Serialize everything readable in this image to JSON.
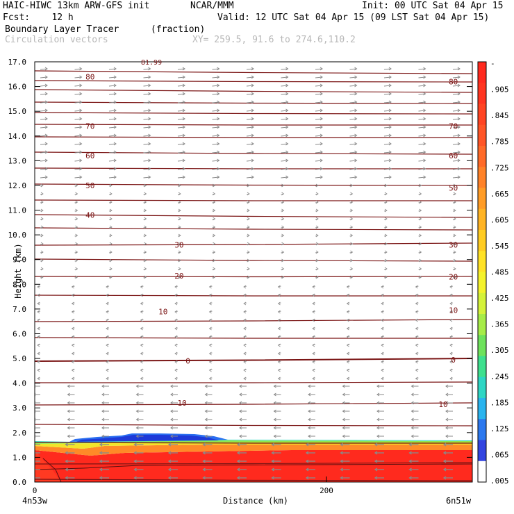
{
  "header": {
    "model_title": "HAIC-HIWC 13km ARW-GFS init",
    "org": "NCAR/MMM",
    "init_time": "Init: 00 UTC Sat 04 Apr 15",
    "forecast": "Fcst:    12 h",
    "valid_time": "Valid: 12 UTC Sat 04 Apr 15 (09 LST Sat 04 Apr 15)",
    "field_name": "Boundary Layer Tracer",
    "field_units": "(fraction)",
    "overlay_name": "Circulation vectors",
    "cross_section": "XY= 259.5, 91.6 to 274.6,110.2"
  },
  "chart_data": {
    "type": "heatmap",
    "xlabel": "Distance (km)",
    "ylabel": "Height (km)",
    "xlim": [
      0,
      300
    ],
    "ylim": [
      0,
      17
    ],
    "y_ticks": [
      "0.0",
      "1.0",
      "2.0",
      "3.0",
      "4.0",
      "5.0",
      "6.0",
      "7.0",
      "8.0",
      "9.0",
      "10.0",
      "11.0",
      "12.0",
      "13.0",
      "14.0",
      "15.0",
      "16.0",
      "17.0"
    ],
    "x_ticks": [
      {
        "value": 0,
        "label": "0"
      },
      {
        "value": 200,
        "label": "200"
      }
    ],
    "x_endpoint_labels": {
      "left": "4n53w",
      "right": "6n51w"
    },
    "colorbar": {
      "labels": [
        "-",
        ".905",
        ".845",
        ".785",
        ".725",
        ".665",
        ".605",
        ".545",
        ".485",
        ".425",
        ".365",
        ".305",
        ".245",
        ".185",
        ".125",
        ".065",
        ".005"
      ],
      "colors": [
        "#ff2a1e",
        "#ff3520",
        "#ff4422",
        "#ff5526",
        "#ff6a28",
        "#ff8228",
        "#ff9c26",
        "#ffb424",
        "#ffcc22",
        "#ffe226",
        "#f4f22c",
        "#d4f23a",
        "#a6ec48",
        "#6ee25c",
        "#3ee08e",
        "#2ed6c4",
        "#2ab4ee",
        "#2c78ee",
        "#3244e0",
        "#ffffff"
      ]
    },
    "isotherm_labels": [
      {
        "value": "80",
        "x": 38,
        "y": 16.4
      },
      {
        "value": "80",
        "x": 287,
        "y": 16.2
      },
      {
        "value": "70",
        "x": 38,
        "y": 14.4
      },
      {
        "value": "70",
        "x": 287,
        "y": 14.4
      },
      {
        "value": "60",
        "x": 38,
        "y": 13.2
      },
      {
        "value": "60",
        "x": 287,
        "y": 13.2
      },
      {
        "value": "50",
        "x": 38,
        "y": 12.0
      },
      {
        "value": "50",
        "x": 287,
        "y": 11.9
      },
      {
        "value": "40",
        "x": 38,
        "y": 10.8
      },
      {
        "value": "30",
        "x": 99,
        "y": 9.6
      },
      {
        "value": "30",
        "x": 287,
        "y": 9.6
      },
      {
        "value": "20",
        "x": 99,
        "y": 8.35
      },
      {
        "value": "20",
        "x": 287,
        "y": 8.3
      },
      {
        "value": "10",
        "x": 88,
        "y": 6.9
      },
      {
        "value": "10",
        "x": 287,
        "y": 6.95
      },
      {
        "value": "0",
        "x": 105,
        "y": 4.9
      },
      {
        "value": "0",
        "x": 287,
        "y": 4.95
      },
      {
        "value": "10",
        "x": 101,
        "y": 3.2
      },
      {
        "value": "10",
        "x": 280,
        "y": 3.15
      }
    ],
    "partial_label": "81.99"
  }
}
